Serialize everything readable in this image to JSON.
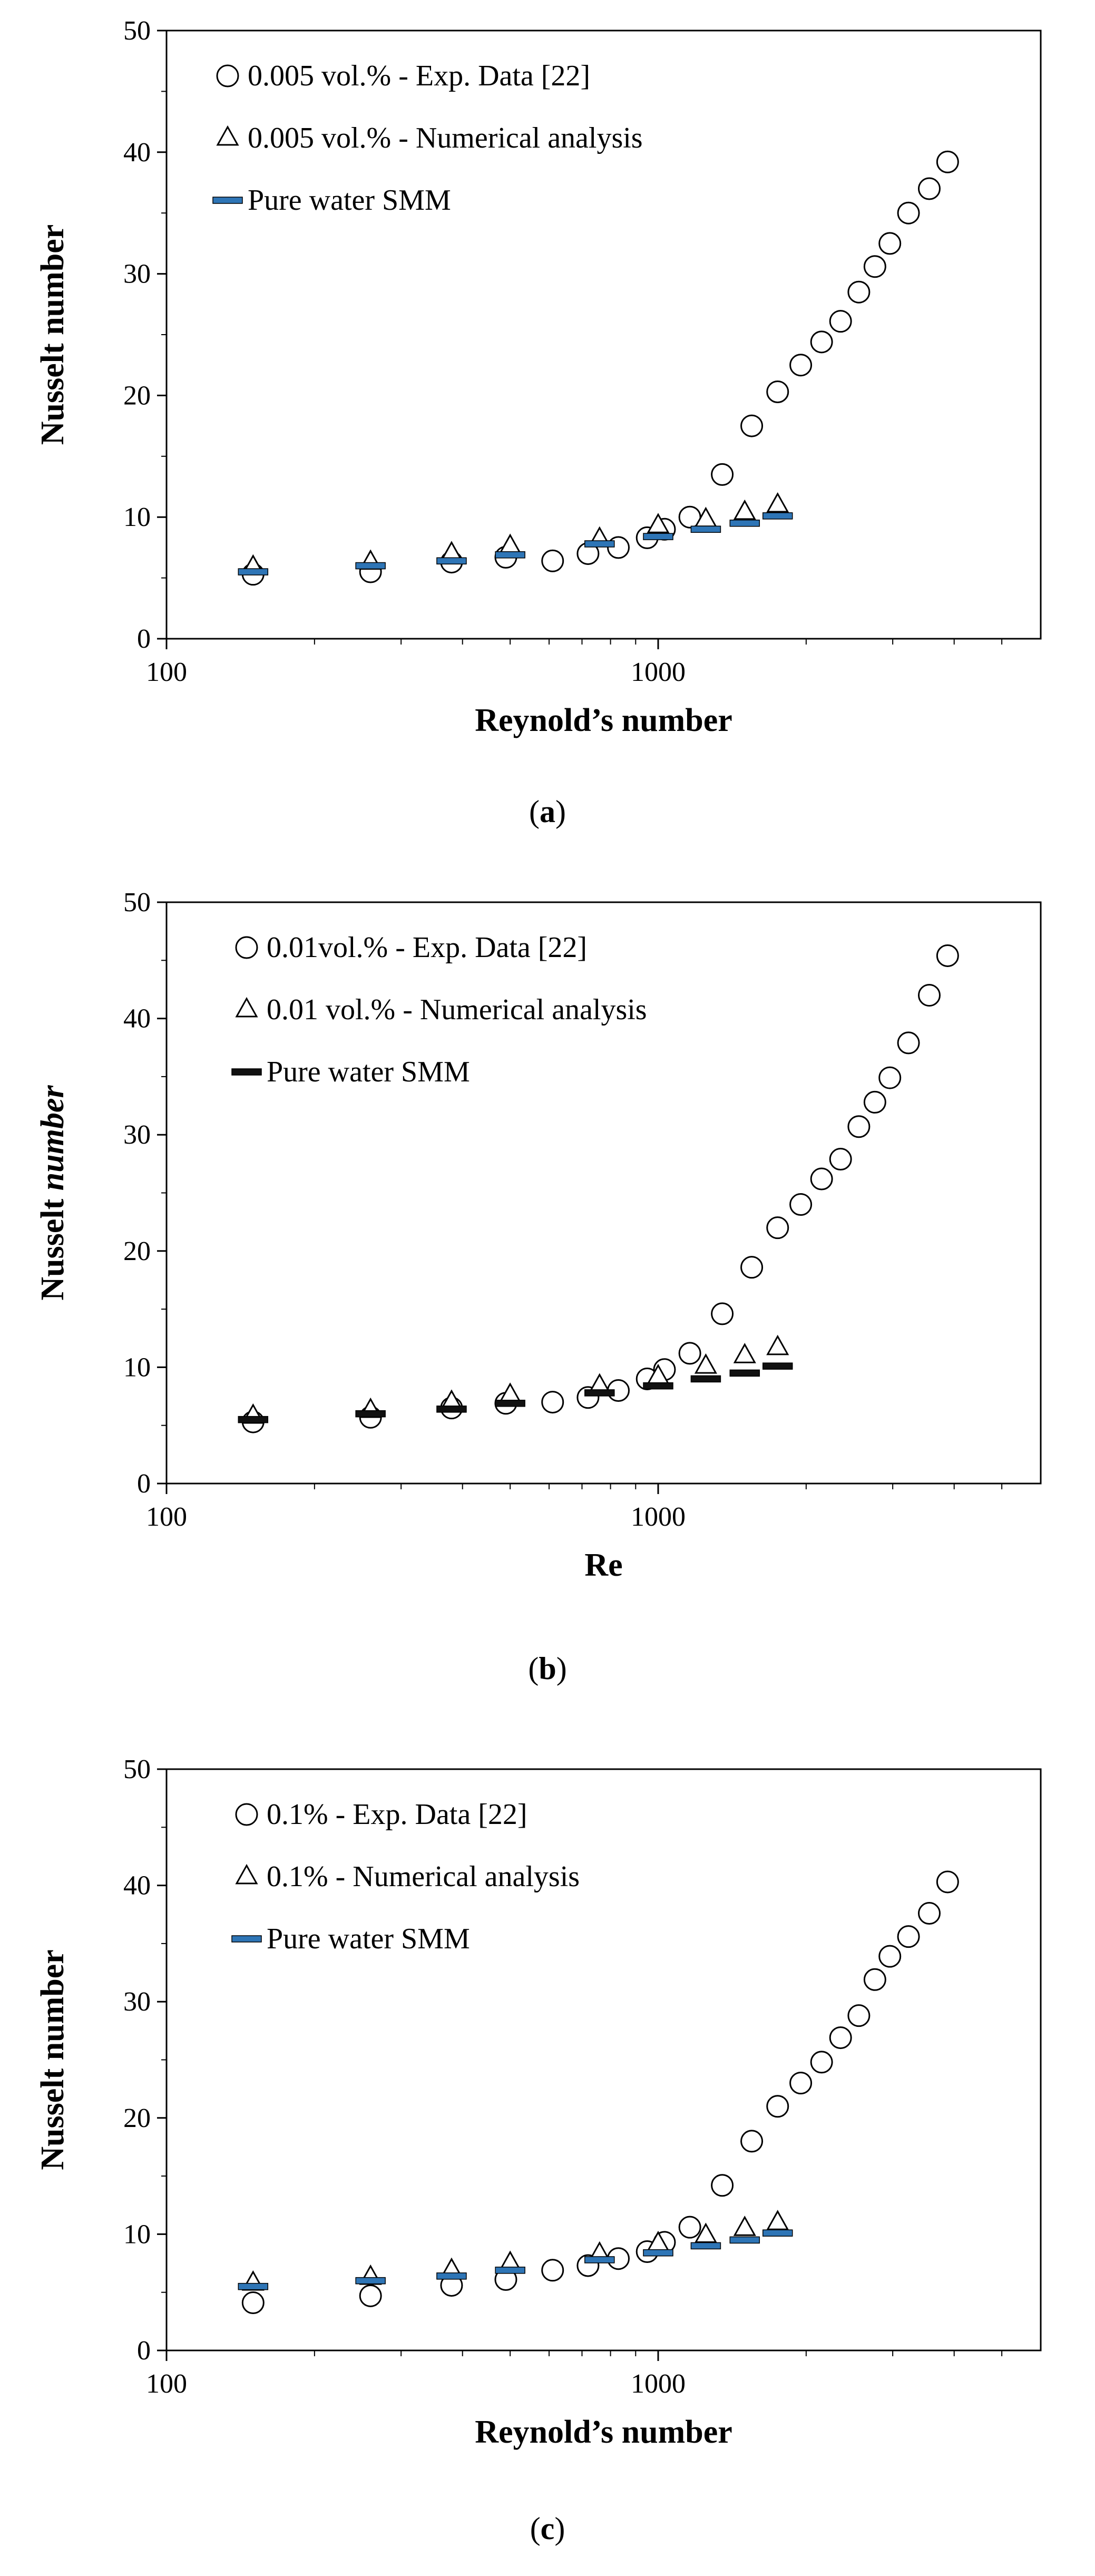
{
  "chart_data": [
    {
      "type": "scatter",
      "panel_label": "a",
      "xlabel": "Reynold’s number",
      "ylabel_parts": [
        {
          "text": "Nusselt number",
          "italic": false
        }
      ],
      "x_scale": "log",
      "xlim": [
        100,
        6000
      ],
      "ylim": [
        0,
        50
      ],
      "x_ticks": [
        100,
        1000
      ],
      "x_tick_labels": [
        "100",
        "1000"
      ],
      "y_ticks": [
        0,
        10,
        20,
        30,
        40,
        50
      ],
      "y_tick_labels": [
        "0",
        "10",
        "20",
        "30",
        "40",
        "50"
      ],
      "legend_position": "top-left",
      "series": [
        {
          "name": "0.005 vol.% - Exp. Data [22]",
          "marker": "circle",
          "x": [
            150,
            260,
            380,
            490,
            610,
            720,
            830,
            950,
            1030,
            1160,
            1350,
            1550,
            1750,
            1950,
            2150,
            2350,
            2560,
            2760,
            2960,
            3230,
            3560,
            3880
          ],
          "y": [
            5.3,
            5.5,
            6.3,
            6.7,
            6.4,
            7.0,
            7.5,
            8.3,
            9.0,
            10.0,
            13.5,
            17.5,
            20.3,
            22.5,
            24.4,
            26.1,
            28.5,
            30.6,
            32.5,
            35.0,
            37.0,
            39.2
          ]
        },
        {
          "name": "0.005 vol.% - Numerical analysis",
          "marker": "triangle",
          "x": [
            150,
            260,
            380,
            500,
            760,
            1000,
            1250,
            1500,
            1750
          ],
          "y": [
            5.9,
            6.3,
            7.0,
            7.6,
            8.2,
            9.3,
            9.8,
            10.4,
            11.0
          ]
        },
        {
          "name": "Pure water SMM",
          "marker": "dash",
          "color": "#2e75b6",
          "x": [
            150,
            260,
            380,
            500,
            760,
            1000,
            1250,
            1500,
            1750
          ],
          "y": [
            5.5,
            6.0,
            6.4,
            6.9,
            7.8,
            8.4,
            9.0,
            9.5,
            10.1
          ]
        }
      ]
    },
    {
      "type": "scatter",
      "panel_label": "b",
      "xlabel": "Re",
      "ylabel_parts": [
        {
          "text": "Nusselt ",
          "italic": false
        },
        {
          "text": "number",
          "italic": true
        }
      ],
      "x_scale": "log",
      "xlim": [
        100,
        6000
      ],
      "ylim": [
        0,
        50
      ],
      "x_ticks": [
        100,
        1000
      ],
      "x_tick_labels": [
        "100",
        "1000"
      ],
      "y_ticks": [
        0,
        10,
        20,
        30,
        40,
        50
      ],
      "y_tick_labels": [
        "0",
        "10",
        "20",
        "30",
        "40",
        "50"
      ],
      "legend_position": "top-left",
      "series": [
        {
          "name": "0.01vol.% - Exp. Data [22]",
          "marker": "circle",
          "x": [
            150,
            260,
            380,
            490,
            610,
            720,
            830,
            950,
            1030,
            1160,
            1350,
            1550,
            1750,
            1950,
            2150,
            2350,
            2560,
            2760,
            2960,
            3230,
            3560,
            3880
          ],
          "y": [
            5.3,
            5.7,
            6.5,
            6.9,
            7.0,
            7.4,
            8.0,
            9.0,
            9.8,
            11.2,
            14.6,
            18.6,
            22.0,
            24.0,
            26.2,
            27.9,
            30.7,
            32.8,
            34.9,
            37.9,
            42.0,
            45.4
          ]
        },
        {
          "name": "0.01 vol.% - Numerical analysis",
          "marker": "triangle",
          "x": [
            150,
            260,
            380,
            500,
            760,
            1000,
            1250,
            1500,
            1750
          ],
          "y": [
            5.8,
            6.3,
            7.0,
            7.6,
            8.4,
            9.2,
            10.1,
            11.0,
            11.7
          ]
        },
        {
          "name": "Pure water SMM",
          "marker": "dash",
          "color": "#111111",
          "x": [
            150,
            260,
            380,
            500,
            760,
            1000,
            1250,
            1500,
            1750
          ],
          "y": [
            5.5,
            6.0,
            6.4,
            6.9,
            7.8,
            8.4,
            9.0,
            9.5,
            10.1
          ]
        }
      ]
    },
    {
      "type": "scatter",
      "panel_label": "c",
      "xlabel": "Reynold’s number",
      "ylabel_parts": [
        {
          "text": "Nusselt number",
          "italic": false
        }
      ],
      "x_scale": "log",
      "xlim": [
        100,
        6000
      ],
      "ylim": [
        0,
        50
      ],
      "x_ticks": [
        100,
        1000
      ],
      "x_tick_labels": [
        "100",
        "1000"
      ],
      "y_ticks": [
        0,
        10,
        20,
        30,
        40,
        50
      ],
      "y_tick_labels": [
        "0",
        "10",
        "20",
        "30",
        "40",
        "50"
      ],
      "legend_position": "top-left",
      "series": [
        {
          "name": "0.1% - Exp. Data [22]",
          "marker": "circle",
          "x": [
            150,
            260,
            380,
            490,
            610,
            720,
            830,
            950,
            1030,
            1160,
            1350,
            1550,
            1750,
            1950,
            2150,
            2350,
            2560,
            2760,
            2960,
            3230,
            3560,
            3880
          ],
          "y": [
            4.1,
            4.7,
            5.6,
            6.1,
            6.9,
            7.3,
            7.9,
            8.5,
            9.3,
            10.6,
            14.2,
            18.0,
            21.0,
            23.0,
            24.8,
            26.9,
            28.8,
            31.9,
            33.9,
            35.6,
            37.6,
            40.3
          ]
        },
        {
          "name": "0.1% - Numerical analysis",
          "marker": "triangle",
          "x": [
            150,
            260,
            380,
            500,
            760,
            1000,
            1250,
            1500,
            1750
          ],
          "y": [
            5.8,
            6.3,
            6.9,
            7.5,
            8.3,
            9.2,
            9.9,
            10.5,
            11.0
          ]
        },
        {
          "name": "Pure water SMM",
          "marker": "dash",
          "color": "#2e75b6",
          "x": [
            150,
            260,
            380,
            500,
            760,
            1000,
            1250,
            1500,
            1750
          ],
          "y": [
            5.5,
            6.0,
            6.4,
            6.9,
            7.8,
            8.4,
            9.0,
            9.5,
            10.1
          ]
        }
      ]
    }
  ]
}
